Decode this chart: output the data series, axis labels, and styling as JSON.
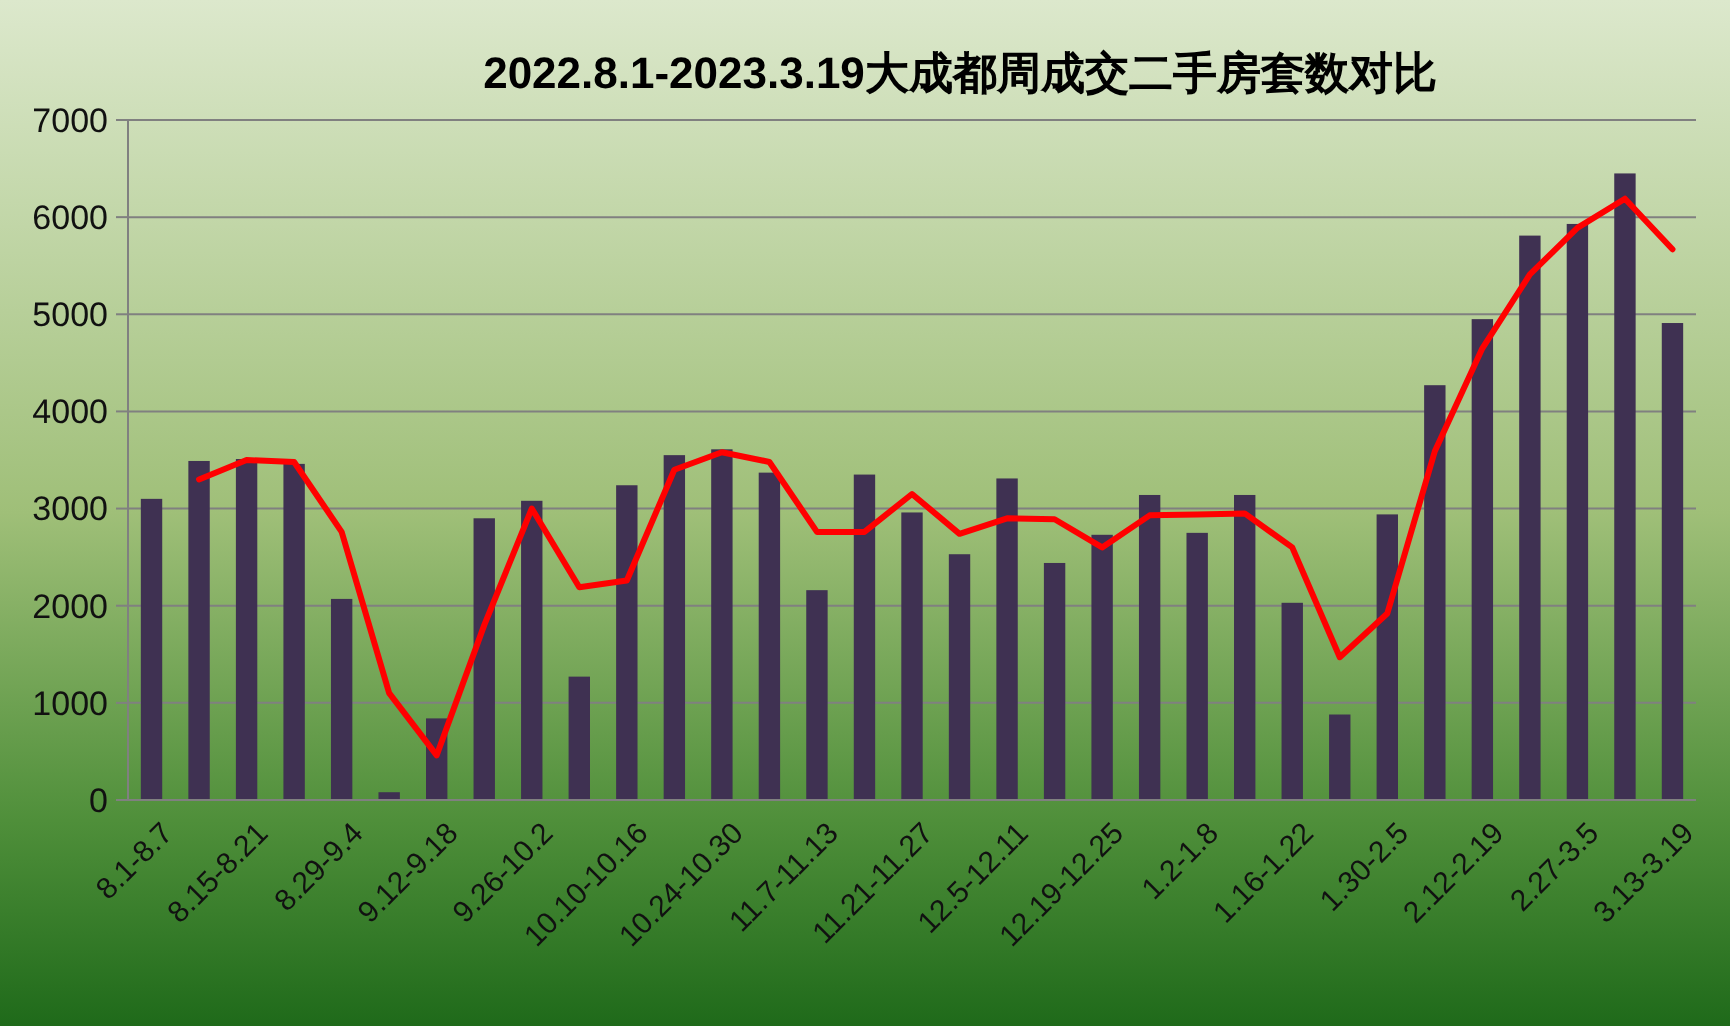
{
  "chart_data": {
    "type": "bar",
    "title": "2022.8.1-2023.3.19大成都周成交二手房套数对比",
    "categories": [
      "8.1-8.7",
      null,
      "8.15-8.21",
      null,
      "8.29-9.4",
      null,
      "9.12-9.18",
      null,
      "9.26-10.2",
      null,
      "10.10-10.16",
      null,
      "10.24-10.30",
      null,
      "11.7-11.13",
      null,
      "11.21-11.27",
      null,
      "12.5-12.11",
      null,
      "12.19-12.25",
      null,
      "1.2-1.8",
      null,
      "1.16-1.22",
      null,
      "1.30-2.5",
      null,
      "2.12-2.19",
      null,
      "2.27-3.5",
      null,
      "3.13-3.19"
    ],
    "series": [
      {
        "color": "#3f3152",
        "values": [
          3100,
          3490,
          3510,
          3460,
          2070,
          80,
          840,
          2900,
          3080,
          1270,
          3240,
          3550,
          3610,
          3370,
          2160,
          3350,
          2960,
          2530,
          3310,
          2440,
          2730,
          3140,
          2750,
          3140,
          2030,
          880,
          2940,
          4270,
          4950,
          5810,
          5930,
          6450,
          4910
        ]
      },
      {
        "type": "line",
        "color": "#ff0000",
        "values": [
          null,
          3300,
          3500,
          3480,
          2760,
          1100,
          460,
          1800,
          3000,
          2190,
          2260,
          3400,
          3580,
          3480,
          2760,
          2760,
          3150,
          2740,
          2900,
          2890,
          2600,
          2930,
          2940,
          2950,
          2600,
          1470,
          1920,
          3590,
          4650,
          5410,
          5890,
          6190,
          5670
        ]
      }
    ],
    "ylim": [
      0,
      7000
    ],
    "yticks": [
      0,
      1000,
      2000,
      3000,
      4000,
      5000,
      6000,
      7000
    ],
    "grid": "y",
    "marker": "none",
    "line_style": "solid"
  }
}
